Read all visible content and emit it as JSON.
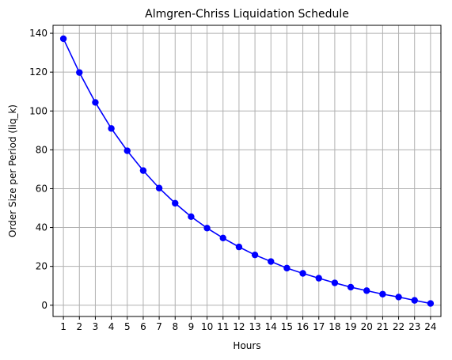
{
  "chart_data": {
    "type": "line",
    "title": "Almgren-Chriss Liquidation Schedule",
    "xlabel": "Hours",
    "ylabel": "Order Size per Period (liq_k)",
    "x": [
      1,
      2,
      3,
      4,
      5,
      6,
      7,
      8,
      9,
      10,
      11,
      12,
      13,
      14,
      15,
      16,
      17,
      18,
      19,
      20,
      21,
      22,
      23,
      24
    ],
    "series": [
      {
        "values": [
          137.2,
          119.8,
          104.4,
          91.0,
          79.5,
          69.3,
          60.3,
          52.5,
          45.6,
          39.7,
          34.6,
          30.0,
          25.9,
          22.5,
          19.1,
          16.4,
          13.9,
          11.5,
          9.3,
          7.5,
          5.7,
          4.2,
          2.5,
          0.9
        ],
        "color": "#0000ff",
        "marker": "circle"
      }
    ],
    "xlim": [
      0.35,
      24.65
    ],
    "ylim": [
      -5.8,
      144.1
    ],
    "yticks": [
      0,
      20,
      40,
      60,
      80,
      100,
      120,
      140
    ],
    "xticks": [
      1,
      2,
      3,
      4,
      5,
      6,
      7,
      8,
      9,
      10,
      11,
      12,
      13,
      14,
      15,
      16,
      17,
      18,
      19,
      20,
      21,
      22,
      23,
      24
    ],
    "grid": true
  }
}
